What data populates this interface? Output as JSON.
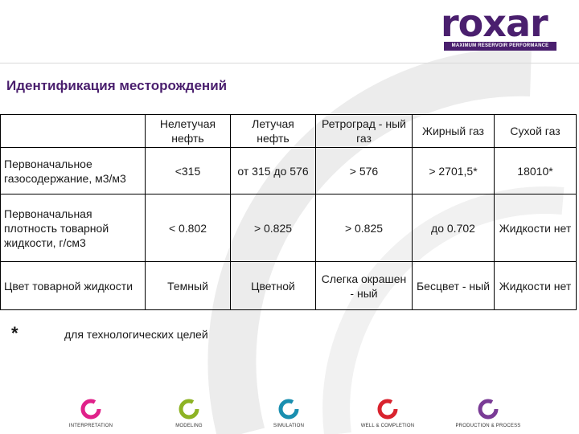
{
  "logo": {
    "word": "roxar",
    "tagline": "MAXIMUM RESERVOIR PERFORMANCE"
  },
  "page_title": "Идентификация месторождений",
  "table": {
    "header": [
      "",
      "Нелетучая нефть",
      "Летучая нефть",
      "Ретроград - ный газ",
      "Жирный газ",
      "Сухой газ"
    ],
    "rows": [
      {
        "label": "Первоначальное газосодержание, м3/м3",
        "cells": [
          "<315",
          "от 315 до 576",
          "> 576",
          "> 2701,5*",
          "18010*"
        ]
      },
      {
        "label": "Первоначальная плотность товарной жидкости, г/см3",
        "cells": [
          "< 0.802",
          "> 0.825",
          "> 0.825",
          "до 0.702",
          "Жидкости нет"
        ]
      },
      {
        "label": "Цвет товарной жидкости",
        "cells": [
          "Темный",
          "Цветной",
          "Слегка окрашен - ный",
          "Бесцвет - ный",
          "Жидкости нет"
        ]
      }
    ]
  },
  "footnote": {
    "marker": "*",
    "text": "для технологических целей"
  },
  "nav": [
    {
      "label": "INTERPRETATION",
      "icon": "interpretation-ring-icon",
      "color": "#e0218a"
    },
    {
      "label": "MODELING",
      "icon": "modeling-ring-icon",
      "color": "#8db324"
    },
    {
      "label": "SIMULATION",
      "icon": "simulation-ring-icon",
      "color": "#1a8fb0"
    },
    {
      "label": "WELL & COMPLETION",
      "icon": "well-completion-ring-icon",
      "color": "#d9232e"
    },
    {
      "label": "PRODUCTION & PROCESS",
      "icon": "production-process-ring-icon",
      "color": "#7a3b96"
    }
  ],
  "colors": {
    "brand": "#4a1f6e",
    "background_arc": "#ececec"
  }
}
